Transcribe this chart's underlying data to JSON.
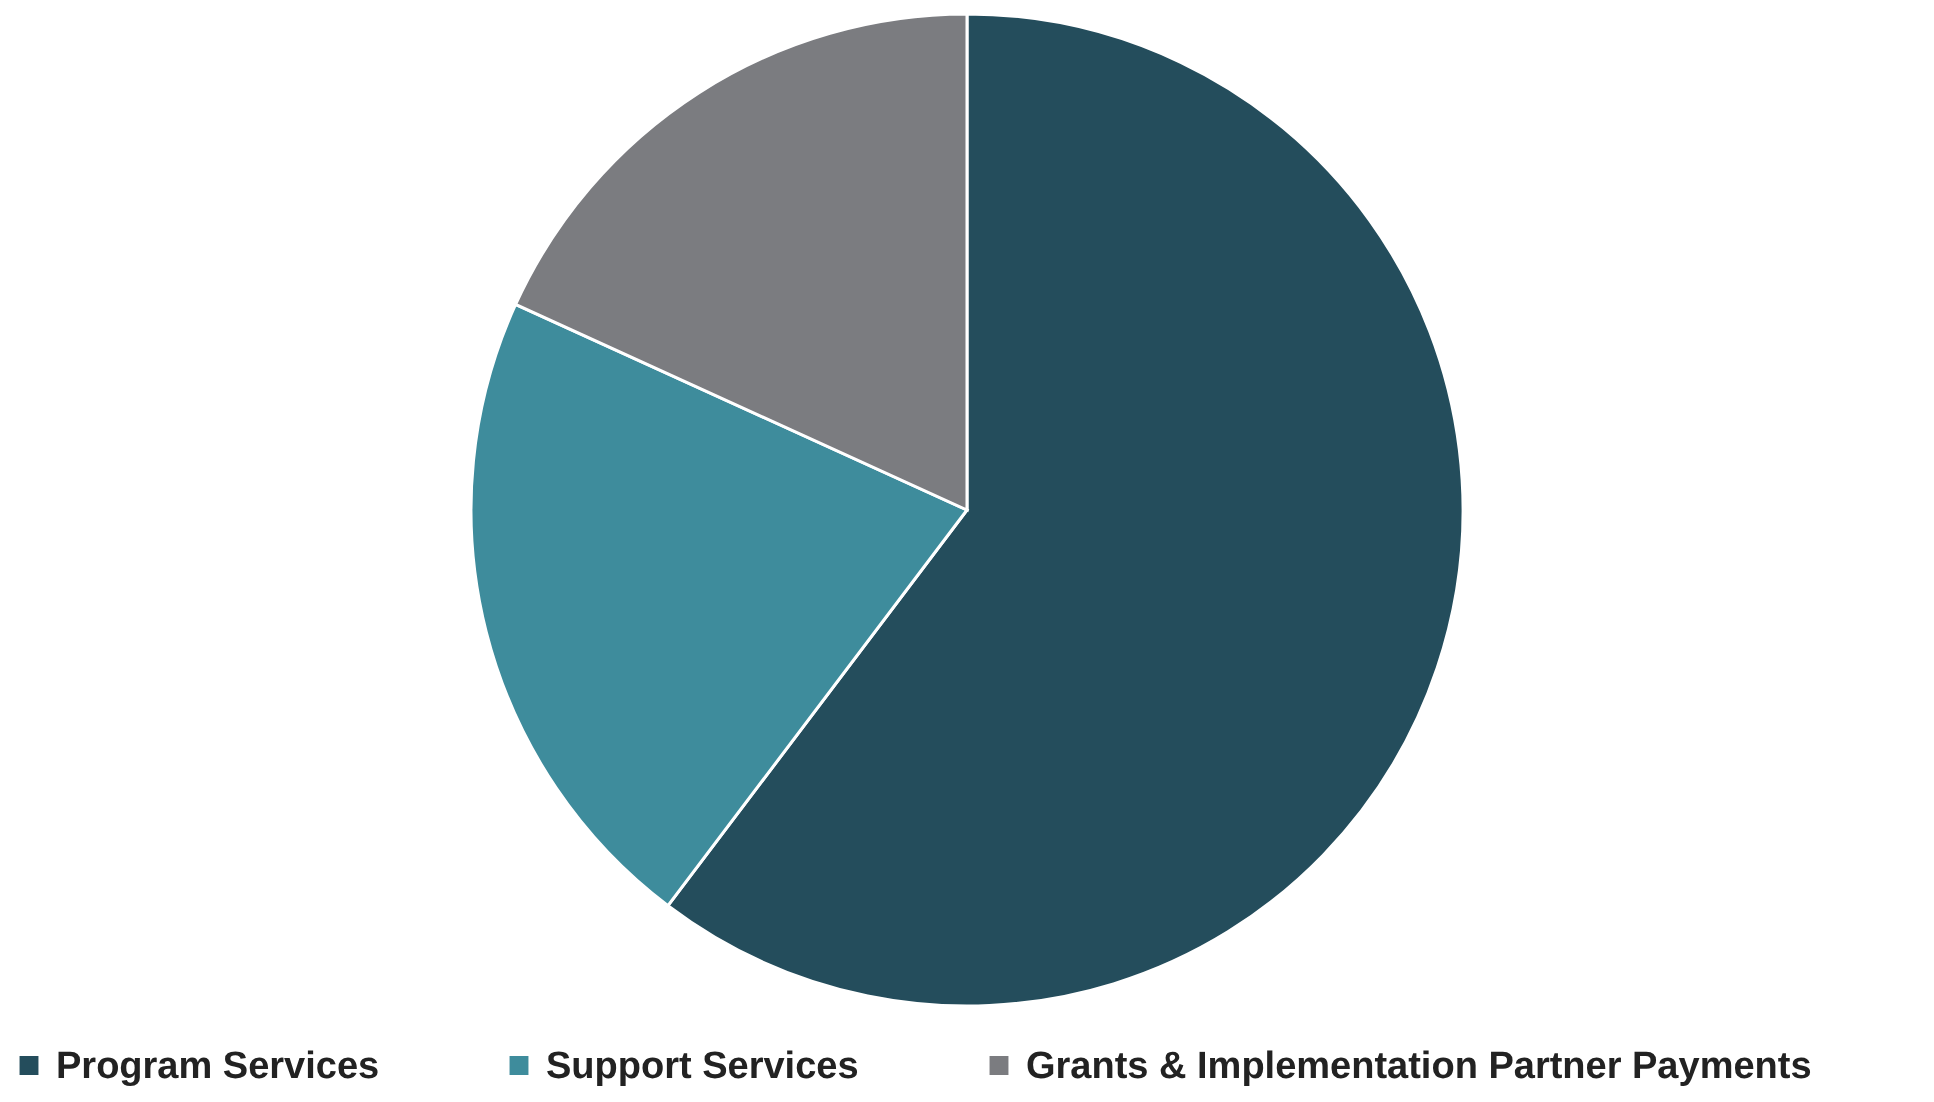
{
  "chart_data": {
    "type": "pie",
    "categories": [
      "Program Services",
      "Support Services",
      "Grants & Implementation Partner Payments"
    ],
    "values": [
      60.3,
      21.5,
      18.2
    ],
    "colors": [
      "#244d5c",
      "#3e8c9c",
      "#7b7c80"
    ],
    "legend": "bottom"
  }
}
